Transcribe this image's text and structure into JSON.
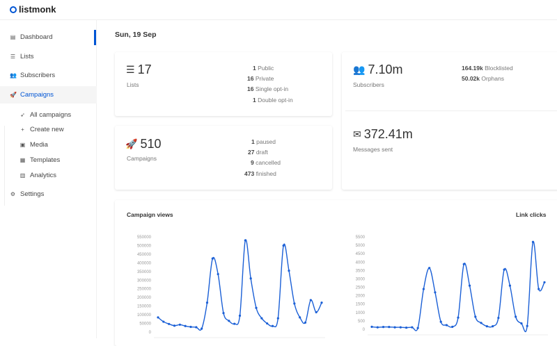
{
  "app": {
    "name": "listmonk"
  },
  "sidebar": {
    "items": [
      {
        "label": "Dashboard",
        "icon": "dashboard-icon"
      },
      {
        "label": "Lists",
        "icon": "list-icon"
      },
      {
        "label": "Subscribers",
        "icon": "users-icon"
      },
      {
        "label": "Campaigns",
        "icon": "rocket-icon",
        "active": true
      },
      {
        "label": "Settings",
        "icon": "gear-icon"
      }
    ],
    "campaign_sub": [
      {
        "label": "All campaigns",
        "icon": "rocket-icon"
      },
      {
        "label": "Create new",
        "icon": "plus-icon"
      },
      {
        "label": "Media",
        "icon": "image-icon"
      },
      {
        "label": "Templates",
        "icon": "file-icon"
      },
      {
        "label": "Analytics",
        "icon": "bar-chart-icon"
      }
    ]
  },
  "header": {
    "date": "Sun, 19 Sep"
  },
  "cards": {
    "lists": {
      "value": "17",
      "label": "Lists",
      "stats": [
        {
          "n": "1",
          "t": "Public"
        },
        {
          "n": "16",
          "t": "Private"
        },
        {
          "n": "16",
          "t": "Single opt-in"
        },
        {
          "n": "1",
          "t": "Double opt-in"
        }
      ]
    },
    "campaigns": {
      "value": "510",
      "label": "Campaigns",
      "stats": [
        {
          "n": "1",
          "t": "paused"
        },
        {
          "n": "27",
          "t": "draft"
        },
        {
          "n": "9",
          "t": "cancelled"
        },
        {
          "n": "473",
          "t": "finished"
        }
      ]
    },
    "subscribers": {
      "value": "7.10m",
      "label": "Subscribers",
      "stats": [
        {
          "n": "164.19k",
          "t": "Blocklisted"
        },
        {
          "n": "50.02k",
          "t": "Orphans"
        }
      ]
    },
    "messages": {
      "value": "372.41m",
      "label": "Messages sent"
    }
  },
  "colors": {
    "accent": "#0055d4",
    "line": "#1a5fd6"
  },
  "chart_data": [
    {
      "type": "line",
      "title": "Campaign views",
      "ylim": [
        0,
        550000
      ],
      "yticks": [
        "550000",
        "500000",
        "450000",
        "400000",
        "350000",
        "300000",
        "250000",
        "200000",
        "150000",
        "100000",
        "50000",
        "0"
      ],
      "values": [
        85000,
        60000,
        47000,
        37000,
        43000,
        35000,
        30000,
        28000,
        20000,
        170000,
        425000,
        335000,
        110000,
        65000,
        48000,
        95000,
        530000,
        310000,
        140000,
        80000,
        50000,
        35000,
        80000,
        500000,
        355000,
        165000,
        85000,
        55000,
        185000,
        115000,
        170000
      ]
    },
    {
      "type": "line",
      "title": "Link clicks",
      "ylim": [
        0,
        5500
      ],
      "yticks": [
        "5500",
        "5000",
        "4500",
        "4000",
        "3500",
        "3000",
        "2500",
        "2000",
        "1500",
        "1000",
        "500",
        "0"
      ],
      "values": [
        150,
        120,
        140,
        140,
        120,
        120,
        100,
        120,
        80,
        2400,
        3650,
        2200,
        450,
        250,
        150,
        700,
        3880,
        2600,
        750,
        380,
        180,
        180,
        680,
        3550,
        2600,
        750,
        350,
        200,
        5200,
        2400,
        2800
      ]
    }
  ]
}
